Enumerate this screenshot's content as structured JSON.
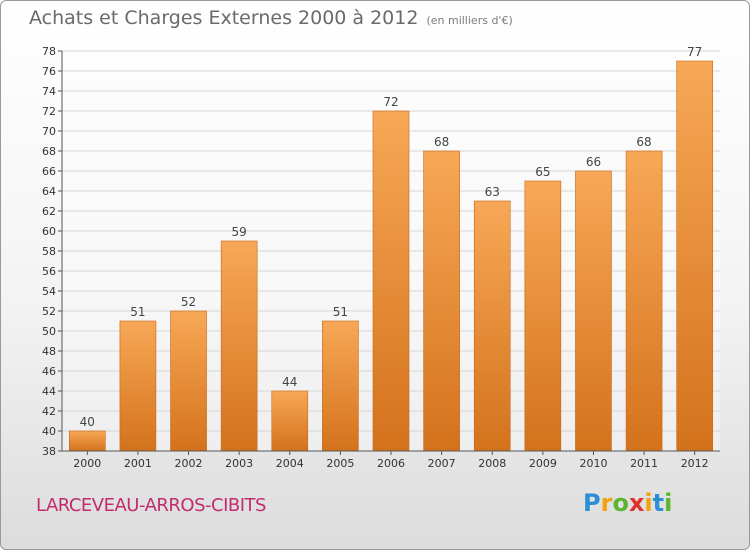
{
  "title": "Achats et Charges Externes 2000 à 2012",
  "unit_note": "(en milliers d'€)",
  "commune": "LARCEVEAU-ARROS-CIBITS",
  "logo": {
    "letters": [
      "P",
      "r",
      "o",
      "x",
      "i",
      "t",
      "i"
    ],
    "colors": [
      "#2a8fd6",
      "#f2a20c",
      "#5cb531",
      "#e0302a",
      "#f2a20c",
      "#2a8fd6",
      "#5cb531"
    ]
  },
  "colors": {
    "bar_light": "#f7a856",
    "bar_dark": "#d4721c",
    "commune": "#c02c6e"
  },
  "chart_data": {
    "type": "bar",
    "title": "Achats et Charges Externes 2000 à 2012",
    "subtitle": "(en milliers d'€)",
    "categories": [
      "2000",
      "2001",
      "2002",
      "2003",
      "2004",
      "2005",
      "2006",
      "2007",
      "2008",
      "2009",
      "2010",
      "2011",
      "2012"
    ],
    "values": [
      40,
      51,
      52,
      59,
      44,
      51,
      72,
      68,
      63,
      65,
      66,
      68,
      77
    ],
    "ylim": [
      38,
      78
    ],
    "ytick_step": 2,
    "grid": true,
    "data_labels": true
  }
}
